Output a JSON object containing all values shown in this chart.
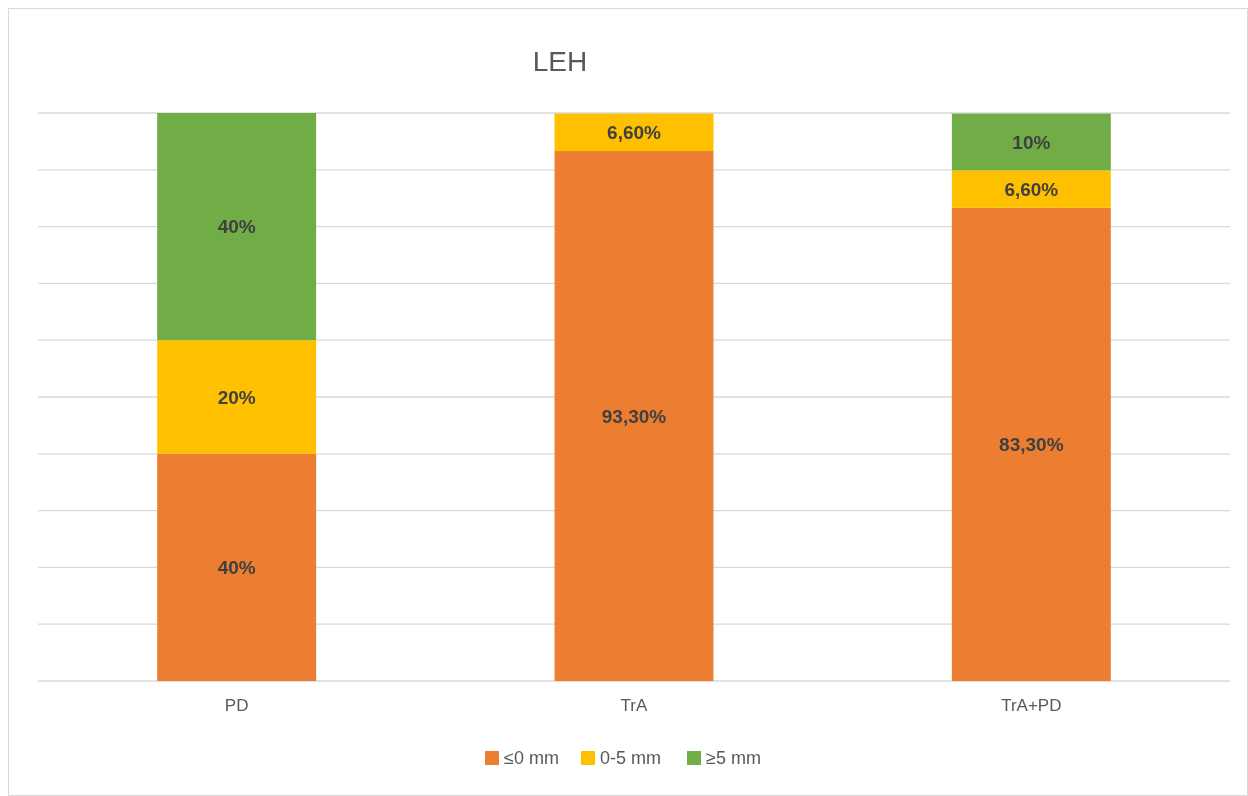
{
  "chart_data": {
    "type": "bar",
    "title": "LEH",
    "stacked": true,
    "categories": [
      "PD",
      "TrA",
      "TrA+PD"
    ],
    "series": [
      {
        "name": "≤0 mm",
        "color": "#ed7d31",
        "values": [
          40,
          93.3,
          83.3
        ],
        "value_labels": [
          "40%",
          "93,30%",
          "83,30%"
        ]
      },
      {
        "name": "0-5 mm",
        "color": "#ffc000",
        "values": [
          20,
          6.6,
          6.6
        ],
        "value_labels": [
          "20%",
          "6,60%",
          "6,60%"
        ]
      },
      {
        "name": "≥5 mm",
        "color": "#70ad47",
        "values": [
          40,
          null,
          10
        ],
        "value_labels": [
          "40%",
          null,
          "10%"
        ]
      }
    ],
    "ylim": [
      0,
      100
    ],
    "yticks": [
      {
        "value": 0,
        "label": null
      },
      {
        "value": 10,
        "label": null
      },
      {
        "value": 20,
        "label": null
      },
      {
        "value": 30,
        "label": null
      },
      {
        "value": 40,
        "label": null
      },
      {
        "value": 50,
        "label": null
      },
      {
        "value": 60,
        "label": null
      },
      {
        "value": 70,
        "label": null
      },
      {
        "value": 80,
        "label": null
      },
      {
        "value": 90,
        "label": null
      },
      {
        "value": 100,
        "label": null
      }
    ],
    "grid": "y",
    "tick_labels": "x",
    "legend": "bottom"
  }
}
